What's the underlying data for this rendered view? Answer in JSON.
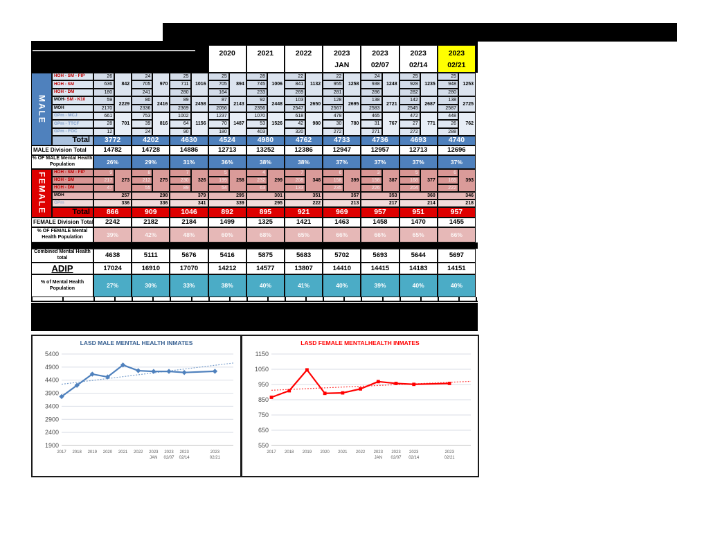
{
  "report": {
    "table": {
      "redacted_columns": 3,
      "column_headers": [
        {
          "label": "2020",
          "sub": ""
        },
        {
          "label": "2021",
          "sub": ""
        },
        {
          "label": "2022",
          "sub": ""
        },
        {
          "label": "2023",
          "sub": "JAN"
        },
        {
          "label": "2023",
          "sub": "02/07"
        },
        {
          "label": "2023",
          "sub": "02/14"
        },
        {
          "label": "2023",
          "sub": "02/21",
          "highlighted": true
        }
      ],
      "male": {
        "band_label": "MALE",
        "groups": [
          {
            "name": "HOH",
            "rows": [
              {
                "label": "HOH - SM - FIP",
                "style": "red",
                "values": [
                  26,
                  24,
                  25,
                  25,
                  28,
                  22,
                  22,
                  24,
                  25,
                  25
                ]
              },
              {
                "label": "HOH - SM",
                "style": "red",
                "values": [
                  636,
                  705,
                  711,
                  705,
                  745,
                  841,
                  955,
                  938,
                  928,
                  948
                ]
              },
              {
                "label": "HOH - DM",
                "style": "red",
                "values": [
                  180,
                  241,
                  280,
                  164,
                  233,
                  269,
                  281,
                  286,
                  282,
                  280
                ]
              }
            ],
            "subtotals": [
              842,
              970,
              1016,
              894,
              1006,
              1132,
              1258,
              1248,
              1235,
              1253
            ]
          },
          {
            "name": "MOH",
            "rows": [
              {
                "label": "MOH - SM - K10",
                "style": "mixed",
                "values": [
                  59,
                  80,
                  89,
                  87,
                  92,
                  103,
                  128,
                  138,
                  142,
                  138
                ]
              },
              {
                "label": "MOH",
                "style": "black",
                "values": [
                  2170,
                  2336,
                  2369,
                  2056,
                  2356,
                  2547,
                  2567,
                  2583,
                  2545,
                  2587
                ]
              }
            ],
            "subtotals": [
              2229,
              2416,
              2458,
              2143,
              2448,
              2650,
              2695,
              2721,
              2687,
              2725
            ]
          },
          {
            "name": "GPm",
            "rows": [
              {
                "label": "GPm - MCJ",
                "style": "gpm",
                "values": [
                  661,
                  753,
                  1002,
                  1237,
                  1070,
                  618,
                  478,
                  465,
                  472,
                  448
                ]
              },
              {
                "label": "GPm - TTCF",
                "style": "gpm",
                "values": [
                  28,
                  39,
                  64,
                  70,
                  53,
                  42,
                  30,
                  31,
                  27,
                  26
                ]
              },
              {
                "label": "GPm - FOC",
                "style": "gpm",
                "values": [
                  12,
                  24,
                  90,
                  180,
                  403,
                  320,
                  272,
                  271,
                  272,
                  288
                ]
              }
            ],
            "subtotals": [
              701,
              816,
              1156,
              1487,
              1526,
              980,
              780,
              767,
              771,
              762
            ]
          }
        ],
        "total_label": "Total",
        "totals": [
          3772,
          4202,
          4630,
          4524,
          4980,
          4762,
          4733,
          4736,
          4693,
          4740
        ]
      },
      "male_division_total": {
        "label": "MALE Division Total",
        "values": [
          14782,
          14728,
          14886,
          12713,
          13252,
          12386,
          12947,
          12957,
          12713,
          12696
        ]
      },
      "male_pct": {
        "label_line1": "% OF MALE Mental Health",
        "label_line2": "Population",
        "values": [
          "26%",
          "29%",
          "31%",
          "36%",
          "38%",
          "38%",
          "37%",
          "37%",
          "37%",
          "37%"
        ]
      },
      "female": {
        "band_label": "FEMALE",
        "hoh_group": {
          "rows": [
            {
              "label": "HOH - SM - FIP",
              "style": "red",
              "values": [
                9,
                8,
                7,
                5,
                4,
                7,
                6,
                3,
                5,
                6
              ]
            },
            {
              "label": "HOH - SM",
              "style": "red",
              "values": [
                217,
                212,
                230,
                199,
                232,
                208,
                158,
                158,
                168,
                165
              ]
            },
            {
              "label": "HOH - DM",
              "style": "red",
              "values": [
                47,
                55,
                89,
                54,
                63,
                133,
                235,
                226,
                204,
                222
              ]
            }
          ],
          "subtotals": [
            273,
            275,
            326,
            258,
            299,
            348,
            399,
            387,
            377,
            393
          ]
        },
        "moh_row": {
          "label": "MOH",
          "values": [
            257,
            298,
            379,
            295,
            301,
            351,
            357,
            353,
            360,
            346
          ]
        },
        "gpm_row": {
          "label": "GPm",
          "values": [
            336,
            336,
            341,
            339,
            295,
            222,
            213,
            217,
            214,
            218
          ]
        },
        "total_label": "Total",
        "totals": [
          866,
          909,
          1046,
          892,
          895,
          921,
          969,
          957,
          951,
          957
        ]
      },
      "female_division_total": {
        "label": "FEMALE Division Total",
        "values": [
          2242,
          2182,
          2184,
          1499,
          1325,
          1421,
          1463,
          1458,
          1470,
          1455
        ]
      },
      "female_pct": {
        "label_line1": "% OF FEMALE Mental",
        "label_line2": "Health Population",
        "values": [
          "39%",
          "42%",
          "48%",
          "60%",
          "68%",
          "65%",
          "66%",
          "66%",
          "65%",
          "66%"
        ]
      },
      "combined": {
        "label_line1": "Combined Mental Health",
        "label_line2": "total",
        "values": [
          4638,
          5111,
          5676,
          5416,
          5875,
          5683,
          5702,
          5693,
          5644,
          5697
        ]
      },
      "adip": {
        "label": "ADIP",
        "values": [
          17024,
          16910,
          17070,
          14212,
          14577,
          13807,
          14410,
          14415,
          14183,
          14151
        ]
      },
      "total_pct": {
        "label_line1": "% of Mental Health",
        "label_line2": "Population",
        "values": [
          "27%",
          "30%",
          "33%",
          "38%",
          "40%",
          "41%",
          "40%",
          "39%",
          "40%",
          "40%"
        ]
      }
    },
    "colors": {
      "male_blue": "#4F81BD",
      "male_cell": "#D3DCE9",
      "male_subcell": "#DCE4EF",
      "male_gpm_cell": "#DFE7F2",
      "male_gpm_subcell": "#E8EEF6",
      "male_label_cell": "#DCE6F1",
      "male_total_label": "#A9C1DE",
      "female_red": "#DE0000",
      "female_hoh_cell": "#D99694",
      "female_hoh_subcell": "#DA9B99",
      "female_moh_cell": "#E6B8B7",
      "female_gpm_cell": "#F2DCDB",
      "teal": "#4BACC6",
      "highlight_yellow": "#FFFF00",
      "redacted_black": "#000000"
    }
  },
  "chart_data": [
    {
      "type": "line",
      "title": "LASD MALE MENTAL HEALTH INMATES",
      "title_color": "#365F91",
      "line_color": "#4F81BD",
      "categories": [
        "2017",
        "2018",
        "2019",
        "2020",
        "2021",
        "2022",
        "2023 JAN",
        "2023 02/07",
        "2023 02/14",
        "2023 02/21"
      ],
      "x_slots": [
        0,
        1,
        2,
        3,
        4,
        5,
        6,
        7,
        8,
        10
      ],
      "series": [
        {
          "name": "LASD male mental health inmates",
          "values": [
            3772,
            4202,
            4630,
            4524,
            4980,
            4762,
            4733,
            4736,
            4693,
            4740
          ]
        }
      ],
      "ylim": [
        1900,
        5400
      ],
      "ytick": 500,
      "trendline": true,
      "grid": true,
      "legend": "none",
      "marker": "diamond"
    },
    {
      "type": "line",
      "title": "LASD FEMALE MENTALHEALTH INMATES",
      "title_color": "#FF0000",
      "line_color": "#FF0000",
      "categories": [
        "2017",
        "2018",
        "2019",
        "2020",
        "2021",
        "2022",
        "2023 JAN",
        "2023 02/07",
        "2023 02/14",
        "2023 02/21"
      ],
      "x_slots": [
        0,
        1,
        2,
        3,
        4,
        5,
        6,
        7,
        8,
        10
      ],
      "series": [
        {
          "name": "LASD female mental health inmates",
          "values": [
            866,
            909,
            1046,
            892,
            895,
            921,
            969,
            957,
            951,
            957
          ]
        }
      ],
      "ylim": [
        550,
        1150
      ],
      "ytick": 100,
      "trendline": true,
      "grid": true,
      "legend": "none",
      "marker": "square"
    }
  ]
}
